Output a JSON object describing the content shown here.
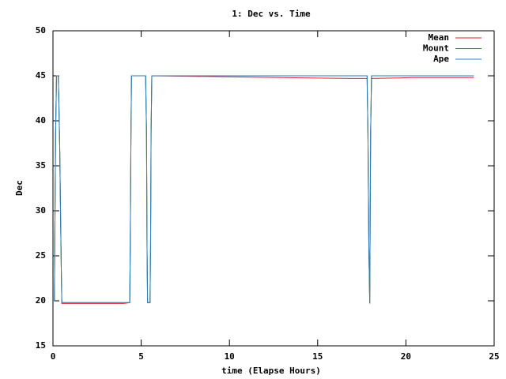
{
  "chart_data": {
    "type": "line",
    "title": "1: Dec vs. Time",
    "x_label": "time (Elapse Hours)",
    "y_label": "Dec",
    "x": [
      0,
      0.08,
      0.1,
      0.15,
      0.2,
      0.3,
      0.33,
      0.38,
      0.42,
      0.47,
      0.5,
      4.0,
      4.35,
      4.38,
      4.42,
      4.45,
      5.25,
      5.3,
      5.33,
      5.36,
      5.5,
      5.53,
      5.56,
      5.6,
      9.5,
      13.0,
      17.0,
      17.8,
      17.85,
      17.9,
      17.95,
      18.0,
      18.05,
      20.4,
      23.85
    ],
    "series": [
      {
        "name": "Mean",
        "color": "#e0202a",
        "values": [
          20,
          20,
          26,
          38.7,
          45,
          45,
          42.4,
          37.3,
          31.1,
          23.6,
          19.7,
          19.7,
          19.8,
          26,
          38.7,
          45,
          45,
          38.7,
          26,
          19.8,
          19.8,
          26,
          38.7,
          45,
          44.9,
          44.8,
          44.7,
          44.7,
          38.5,
          26,
          19.7,
          38.5,
          44.7,
          44.8,
          44.8
        ]
      },
      {
        "name": "Mount",
        "color": "#1aa01a",
        "values": [
          20,
          20,
          26,
          38.7,
          45,
          45,
          42.4,
          37.3,
          31.1,
          23.6,
          19.8,
          19.8,
          19.8,
          26,
          38.7,
          45,
          45,
          38.7,
          26,
          19.8,
          19.8,
          26,
          38.7,
          45,
          45,
          45,
          45,
          45,
          38.5,
          26,
          19.7,
          38.5,
          45,
          45,
          45
        ]
      },
      {
        "name": "Ape",
        "color": "#2a7fc8",
        "values": [
          20,
          20,
          26,
          38.7,
          45,
          45,
          42.4,
          37.3,
          31.1,
          23.6,
          19.8,
          19.8,
          19.8,
          26,
          38.7,
          45,
          45,
          38.7,
          26,
          19.8,
          19.8,
          26,
          38.7,
          45,
          45,
          45,
          45,
          45,
          38.5,
          26,
          19.7,
          38.5,
          45,
          45,
          45
        ]
      }
    ],
    "xlim": [
      0,
      25
    ],
    "xticks": [
      0,
      5,
      10,
      15,
      20,
      25
    ],
    "ylim": [
      15,
      50
    ],
    "yticks": [
      15,
      20,
      25,
      30,
      35,
      40,
      45,
      50
    ],
    "legend": "upper right"
  }
}
